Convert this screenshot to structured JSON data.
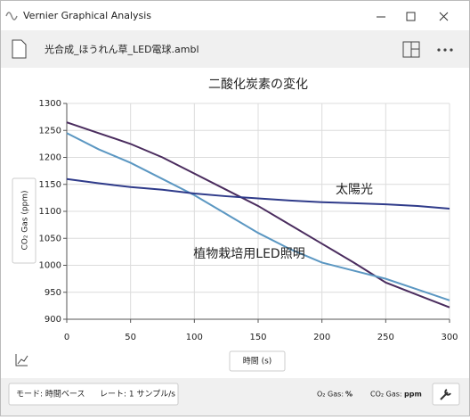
{
  "window": {
    "title": "Vernier Graphical Analysis",
    "file_name": "光合成_ほうれん草_LED電球.ambl"
  },
  "chart_data": {
    "type": "line",
    "title": "二酸化炭素の変化",
    "x_label": "時間 (s)",
    "y_label": "CO₂ Gas (ppm)",
    "x": [
      0,
      25,
      50,
      75,
      100,
      125,
      150,
      175,
      200,
      225,
      250,
      275,
      300
    ],
    "series": [
      {
        "color": "#4a2c5e",
        "values": [
          1265,
          1245,
          1225,
          1200,
          1170,
          1140,
          1110,
          1075,
          1040,
          1005,
          968,
          945,
          922
        ]
      },
      {
        "color": "#5b97c2",
        "values": [
          1245,
          1215,
          1190,
          1160,
          1130,
          1095,
          1060,
          1030,
          1005,
          990,
          975,
          955,
          935
        ]
      },
      {
        "color": "#2f3b8a",
        "values": [
          1160,
          1152,
          1145,
          1140,
          1133,
          1128,
          1124,
          1120,
          1117,
          1115,
          1113,
          1110,
          1105
        ]
      }
    ],
    "annotations": [
      "太陽光",
      "植物栽培用LED照明"
    ],
    "xlim": [
      0,
      300
    ],
    "xticks": [
      0,
      50,
      100,
      150,
      200,
      250,
      300
    ],
    "ylim": [
      900,
      1300
    ],
    "yticks": [
      900,
      950,
      1000,
      1050,
      1100,
      1150,
      1200,
      1250,
      1300
    ],
    "grid": true
  },
  "status_bar": {
    "mode": "モード: 時間ベース",
    "rate": "レート: 1 サンプル/s",
    "sensors": [
      {
        "name": "O₂ Gas:",
        "unit": "%"
      },
      {
        "name": "CO₂ Gas:",
        "unit": "ppm"
      }
    ]
  }
}
